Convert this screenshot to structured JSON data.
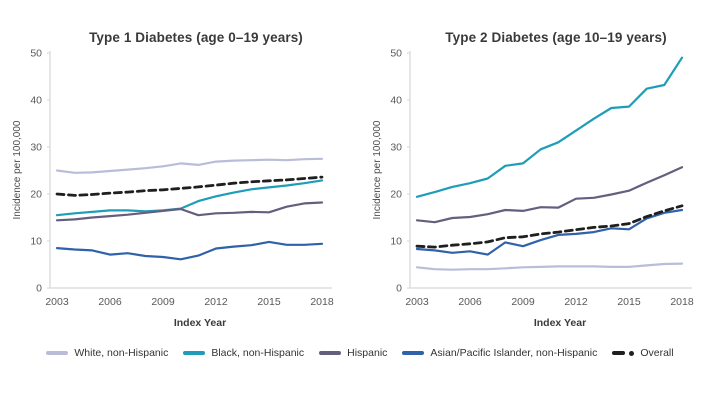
{
  "legend": {
    "items": [
      {
        "label": "White, non-Hispanic",
        "color": "#b9bdd9",
        "marker": "line"
      },
      {
        "label": "Black, non-Hispanic",
        "color": "#1f9db8",
        "marker": "line"
      },
      {
        "label": "Hispanic",
        "color": "#665e7e",
        "marker": "line"
      },
      {
        "label": "Asian/Pacific Islander, non-Hispanic",
        "color": "#2f62a8",
        "marker": "line"
      },
      {
        "label": "Overall",
        "color": "#1f1f1f",
        "marker": "dash-dot"
      }
    ]
  },
  "chart_data": [
    {
      "type": "line",
      "title": "Type 1 Diabetes (age 0–19 years)",
      "xlabel": "Index Year",
      "ylabel": "Incidence per 100,000",
      "x": [
        2003,
        2004,
        2005,
        2006,
        2007,
        2008,
        2009,
        2010,
        2011,
        2012,
        2013,
        2014,
        2015,
        2016,
        2017,
        2018
      ],
      "x_ticks": [
        2003,
        2006,
        2009,
        2012,
        2015,
        2018
      ],
      "y_ticks": [
        0,
        10,
        20,
        30,
        40,
        50
      ],
      "ylim": [
        0,
        50
      ],
      "grid": false,
      "legend_position": "bottom-shared",
      "series": [
        {
          "name": "White, non-Hispanic",
          "color": "#b9bdd9",
          "dash": false,
          "values": [
            25.0,
            24.5,
            24.6,
            24.9,
            25.2,
            25.5,
            25.9,
            26.5,
            26.2,
            26.9,
            27.1,
            27.2,
            27.3,
            27.2,
            27.4,
            27.5
          ]
        },
        {
          "name": "Black, non-Hispanic",
          "color": "#1f9db8",
          "dash": false,
          "values": [
            15.5,
            15.9,
            16.2,
            16.5,
            16.5,
            16.3,
            16.5,
            16.9,
            18.5,
            19.5,
            20.3,
            21.0,
            21.4,
            21.8,
            22.3,
            22.9
          ]
        },
        {
          "name": "Hispanic",
          "color": "#665e7e",
          "dash": false,
          "values": [
            14.4,
            14.6,
            15.0,
            15.3,
            15.6,
            16.0,
            16.4,
            16.8,
            15.5,
            15.9,
            16.0,
            16.2,
            16.1,
            17.3,
            18.0,
            18.2
          ]
        },
        {
          "name": "Asian/Pacific Islander, non-Hispanic",
          "color": "#2f62a8",
          "dash": false,
          "values": [
            8.5,
            8.2,
            8.0,
            7.1,
            7.4,
            6.8,
            6.6,
            6.1,
            6.9,
            8.4,
            8.8,
            9.1,
            9.8,
            9.2,
            9.2,
            9.4
          ]
        },
        {
          "name": "Overall",
          "color": "#1f1f1f",
          "dash": true,
          "values": [
            20.0,
            19.7,
            19.9,
            20.2,
            20.4,
            20.7,
            20.9,
            21.2,
            21.5,
            21.9,
            22.3,
            22.6,
            22.8,
            23.0,
            23.3,
            23.6
          ]
        }
      ]
    },
    {
      "type": "line",
      "title": "Type 2 Diabetes (age 10–19 years)",
      "xlabel": "Index Year",
      "ylabel": "Incidence per 100,000",
      "x": [
        2003,
        2004,
        2005,
        2006,
        2007,
        2008,
        2009,
        2010,
        2011,
        2012,
        2013,
        2014,
        2015,
        2016,
        2017,
        2018
      ],
      "x_ticks": [
        2003,
        2006,
        2009,
        2012,
        2015,
        2018
      ],
      "y_ticks": [
        0,
        10,
        20,
        30,
        40,
        50
      ],
      "ylim": [
        0,
        50
      ],
      "grid": false,
      "legend_position": "bottom-shared",
      "series": [
        {
          "name": "White, non-Hispanic",
          "color": "#b9bdd9",
          "dash": false,
          "values": [
            4.4,
            4.0,
            3.9,
            4.0,
            4.0,
            4.2,
            4.4,
            4.5,
            4.6,
            4.6,
            4.6,
            4.5,
            4.5,
            4.8,
            5.1,
            5.2
          ]
        },
        {
          "name": "Black, non-Hispanic",
          "color": "#1f9db8",
          "dash": false,
          "values": [
            19.4,
            20.4,
            21.5,
            22.3,
            23.3,
            26.0,
            26.5,
            29.5,
            31.0,
            33.5,
            36.0,
            38.3,
            38.6,
            42.4,
            43.2,
            49.0
          ]
        },
        {
          "name": "Hispanic",
          "color": "#665e7e",
          "dash": false,
          "values": [
            14.4,
            14.0,
            14.9,
            15.1,
            15.7,
            16.6,
            16.4,
            17.2,
            17.1,
            19.0,
            19.2,
            19.9,
            20.7,
            22.4,
            24.0,
            25.7
          ]
        },
        {
          "name": "Asian/Pacific Islander, non-Hispanic",
          "color": "#2f62a8",
          "dash": false,
          "values": [
            8.3,
            8.0,
            7.5,
            7.8,
            7.1,
            9.7,
            8.9,
            10.2,
            11.3,
            11.5,
            11.9,
            12.7,
            12.5,
            14.8,
            16.0,
            16.6
          ]
        },
        {
          "name": "Overall",
          "color": "#1f1f1f",
          "dash": true,
          "values": [
            8.9,
            8.7,
            9.1,
            9.4,
            9.8,
            10.7,
            10.9,
            11.5,
            11.9,
            12.4,
            12.9,
            13.2,
            13.7,
            15.2,
            16.4,
            17.5
          ]
        }
      ]
    }
  ]
}
